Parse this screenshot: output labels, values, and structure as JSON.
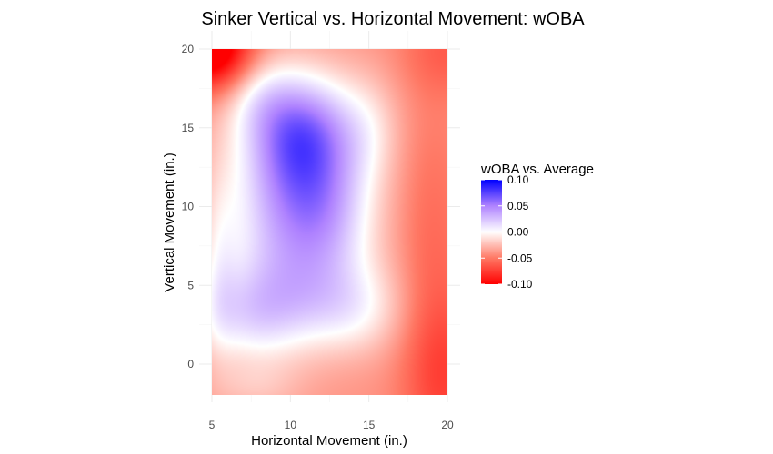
{
  "chart_data": {
    "type": "heatmap",
    "title": "Sinker Vertical vs. Horizontal Movement: wOBA",
    "xlabel": "Horizontal Movement (in.)",
    "ylabel": "Vertical Movement (in.)",
    "xlim": [
      5,
      20
    ],
    "ylim": [
      -2,
      20
    ],
    "x_ticks": [
      5,
      10,
      15,
      20
    ],
    "y_ticks": [
      0,
      5,
      10,
      15,
      20
    ],
    "x_tick_labels": [
      "5",
      "10",
      "15",
      "20"
    ],
    "y_tick_labels": [
      "0",
      "5",
      "10",
      "15",
      "20"
    ],
    "grid": true,
    "legend": {
      "title": "wOBA vs. Average",
      "placement": "right",
      "range": [
        -0.1,
        0.1
      ],
      "ticks": [
        0.1,
        0.05,
        0.0,
        -0.05,
        -0.1
      ],
      "tick_labels": [
        "0.10",
        "0.05",
        "0.00",
        "-0.05",
        "-0.10"
      ],
      "colors": {
        "low": "#ff0000",
        "mid": "#ffffff",
        "high": "#0000ff"
      }
    },
    "surface_features": [
      {
        "x": 10.8,
        "y": 14.8,
        "value": 0.08
      },
      {
        "x": 11.2,
        "y": 11.5,
        "value": 0.04
      },
      {
        "x": 11.5,
        "y": 8.0,
        "value": 0.03
      },
      {
        "x": 11.0,
        "y": 4.0,
        "value": 0.03
      },
      {
        "x": 7.0,
        "y": 3.0,
        "value": 0.02
      },
      {
        "x": 14.0,
        "y": 3.5,
        "value": 0.02
      },
      {
        "x": 5.4,
        "y": 19.6,
        "value": -0.09
      },
      {
        "x": 19.6,
        "y": 19.5,
        "value": -0.03
      },
      {
        "x": 18.6,
        "y": 10.0,
        "value": -0.03
      },
      {
        "x": 18.5,
        "y": 6.0,
        "value": -0.04
      },
      {
        "x": 19.4,
        "y": 0.0,
        "value": -0.05
      },
      {
        "x": 6.0,
        "y": -1.5,
        "value": -0.01
      }
    ]
  }
}
